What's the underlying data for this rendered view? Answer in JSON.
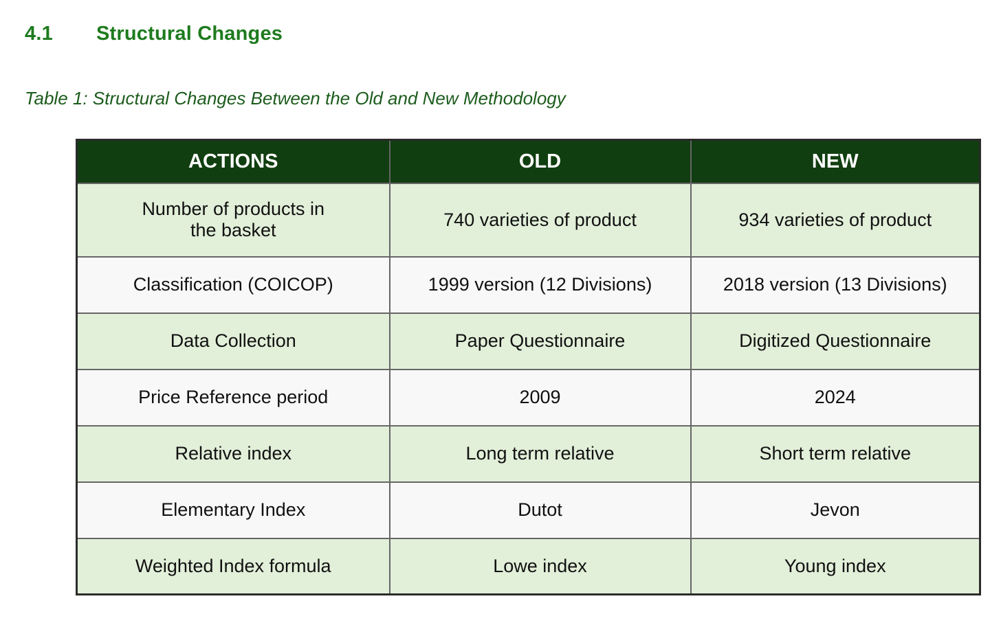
{
  "page": {
    "heading_number": "4.1",
    "heading_title": "Structural Changes",
    "caption": "Table 1: Structural Changes Between the Old and New Methodology"
  },
  "table": {
    "columns": [
      "ACTIONS",
      "OLD",
      "NEW"
    ],
    "rows": [
      {
        "action": "Number of products in\nthe basket",
        "old": "740 varieties of product",
        "new": "934 varieties of product"
      },
      {
        "action": "Classification (COICOP)",
        "old": "1999 version (12 Divisions)",
        "new": "2018 version (13 Divisions)"
      },
      {
        "action": "Data Collection",
        "old": "Paper Questionnaire",
        "new": "Digitized Questionnaire"
      },
      {
        "action": "Price Reference period",
        "old": "2009",
        "new": "2024"
      },
      {
        "action": "Relative index",
        "old": "Long term relative",
        "new": "Short term relative"
      },
      {
        "action": "Elementary Index",
        "old": "Dutot",
        "new": "Jevon"
      },
      {
        "action": "Weighted Index formula",
        "old": "Lowe index",
        "new": "Young index"
      }
    ],
    "colors": {
      "header_bg": "#113e10",
      "header_text": "#ffffff",
      "row_green": "#e2efd9",
      "row_white": "#f8f8f8",
      "border_inner": "#666666",
      "border_outer": "#2b2b2b",
      "heading_green": "#1e7b1e",
      "caption_green": "#1d5c1d"
    }
  }
}
